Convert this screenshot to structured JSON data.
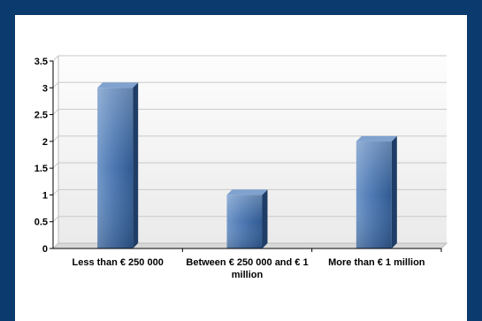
{
  "chart_data": {
    "type": "bar",
    "categories": [
      [
        "Less than € 250 000"
      ],
      [
        "Between € 250 000 and € 1",
        "million"
      ],
      [
        "More than € 1 million"
      ]
    ],
    "values": [
      3,
      1,
      2
    ],
    "yticks": [
      "0",
      "0.5",
      "1",
      "1.5",
      "2",
      "2.5",
      "3",
      "3.5"
    ],
    "ylim": [
      0,
      3.5
    ],
    "grid": true,
    "bar_color": "#3d6aa6"
  }
}
